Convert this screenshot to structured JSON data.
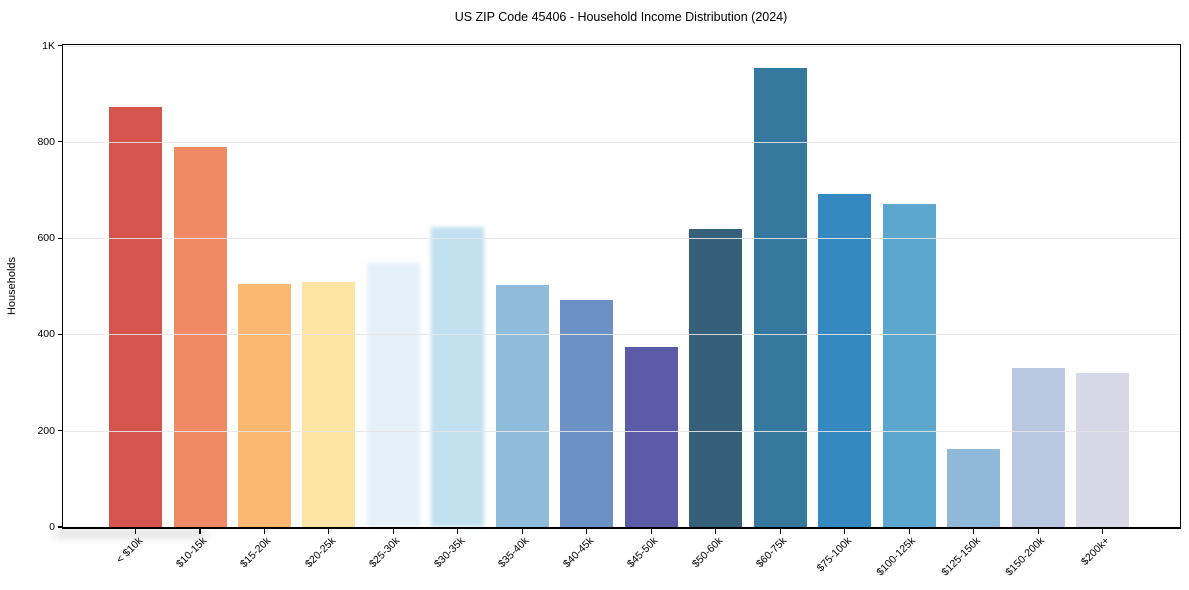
{
  "chart_data": {
    "type": "bar",
    "title": "US ZIP Code 45406 - Household Income Distribution (2024)",
    "xlabel": "",
    "ylabel": "Households",
    "categories": [
      "< $10k",
      "$10-15k",
      "$15-20k",
      "$20-25k",
      "$25-30k",
      "$30-35k",
      "$35-40k",
      "$40-45k",
      "$45-50k",
      "$50-60k",
      "$60-75k",
      "$75-100k",
      "$100-125k",
      "$125-150k",
      "$150-200k",
      "$200k+"
    ],
    "values": [
      872,
      789,
      505,
      509,
      548,
      623,
      502,
      471,
      374,
      620,
      954,
      692,
      671,
      162,
      331,
      320
    ],
    "bar_colors": [
      "#d6544e",
      "#f08a65",
      "#fbb871",
      "#fde4a2",
      "#e4f1f7",
      "#c1e0ef",
      "#90bcdb",
      "#6c92c5",
      "#5b5ba8",
      "#36607a",
      "#35789e",
      "#3389c0",
      "#5ba7ce",
      "#90b8d8",
      "#b9c8e0",
      "#d7d9e8"
    ],
    "blurred_bar_indexes": [
      4,
      5
    ],
    "ylim": [
      0,
      1000
    ],
    "yticks": {
      "values": [
        0,
        200,
        400,
        600,
        800,
        1000
      ],
      "labels": [
        "0",
        "200",
        "400",
        "600",
        "800",
        "1K"
      ]
    },
    "grid": "horizontal-light",
    "legend": "none",
    "x_tick_rotation_deg": 45
  },
  "colors": {
    "background": "#ffffff",
    "spine": "#000000",
    "gridline": "#e6e6e6",
    "text": "#000000"
  }
}
